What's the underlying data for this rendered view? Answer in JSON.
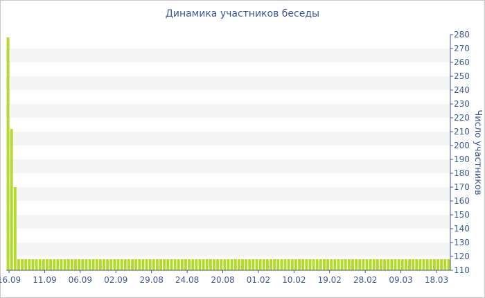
{
  "chart_data": {
    "type": "bar",
    "title": "Динамика участников беседы",
    "xlabel": "",
    "ylabel": "Число участников",
    "ylim": [
      110,
      280
    ],
    "y_ticks": [
      110,
      120,
      130,
      140,
      150,
      160,
      170,
      180,
      190,
      200,
      210,
      220,
      230,
      240,
      250,
      260,
      270,
      280
    ],
    "y_axis_side": "right",
    "grid": "alternating horizontal bands",
    "legend": "none",
    "x_tick_labels": [
      "16.09",
      "11.09",
      "06.09",
      "02.09",
      "29.08",
      "24.08",
      "20.08",
      "01.02",
      "10.02",
      "19.02",
      "28.02",
      "09.03",
      "18.03"
    ],
    "bar_color": "#b5d92b",
    "band_color": "#f5f5f5",
    "text_color": "#3b5998",
    "values": [
      278,
      212,
      170,
      118,
      118,
      118,
      118,
      118,
      118,
      118,
      118,
      118,
      118,
      118,
      118,
      118,
      118,
      118,
      118,
      118,
      118,
      118,
      118,
      118,
      118,
      118,
      118,
      118,
      118,
      118,
      118,
      118,
      118,
      118,
      118,
      118,
      118,
      118,
      118,
      118,
      118,
      118,
      118,
      118,
      118,
      118,
      118,
      118,
      118,
      118,
      118,
      118,
      118,
      118,
      118,
      118,
      118,
      118,
      118,
      118,
      118,
      118,
      118,
      118,
      118,
      118,
      118,
      118,
      118,
      118,
      118,
      118,
      118,
      118,
      118,
      118,
      118,
      118,
      118,
      118,
      118,
      118,
      118,
      118,
      118,
      118,
      118,
      118,
      118,
      118,
      118,
      118,
      118,
      118,
      118,
      118,
      118,
      118,
      118,
      118,
      118,
      118,
      118,
      118,
      118,
      118,
      118,
      118,
      118,
      118,
      118,
      118,
      118,
      118,
      118,
      118,
      118,
      118,
      118,
      118,
      118,
      118,
      118,
      118,
      118
    ]
  }
}
